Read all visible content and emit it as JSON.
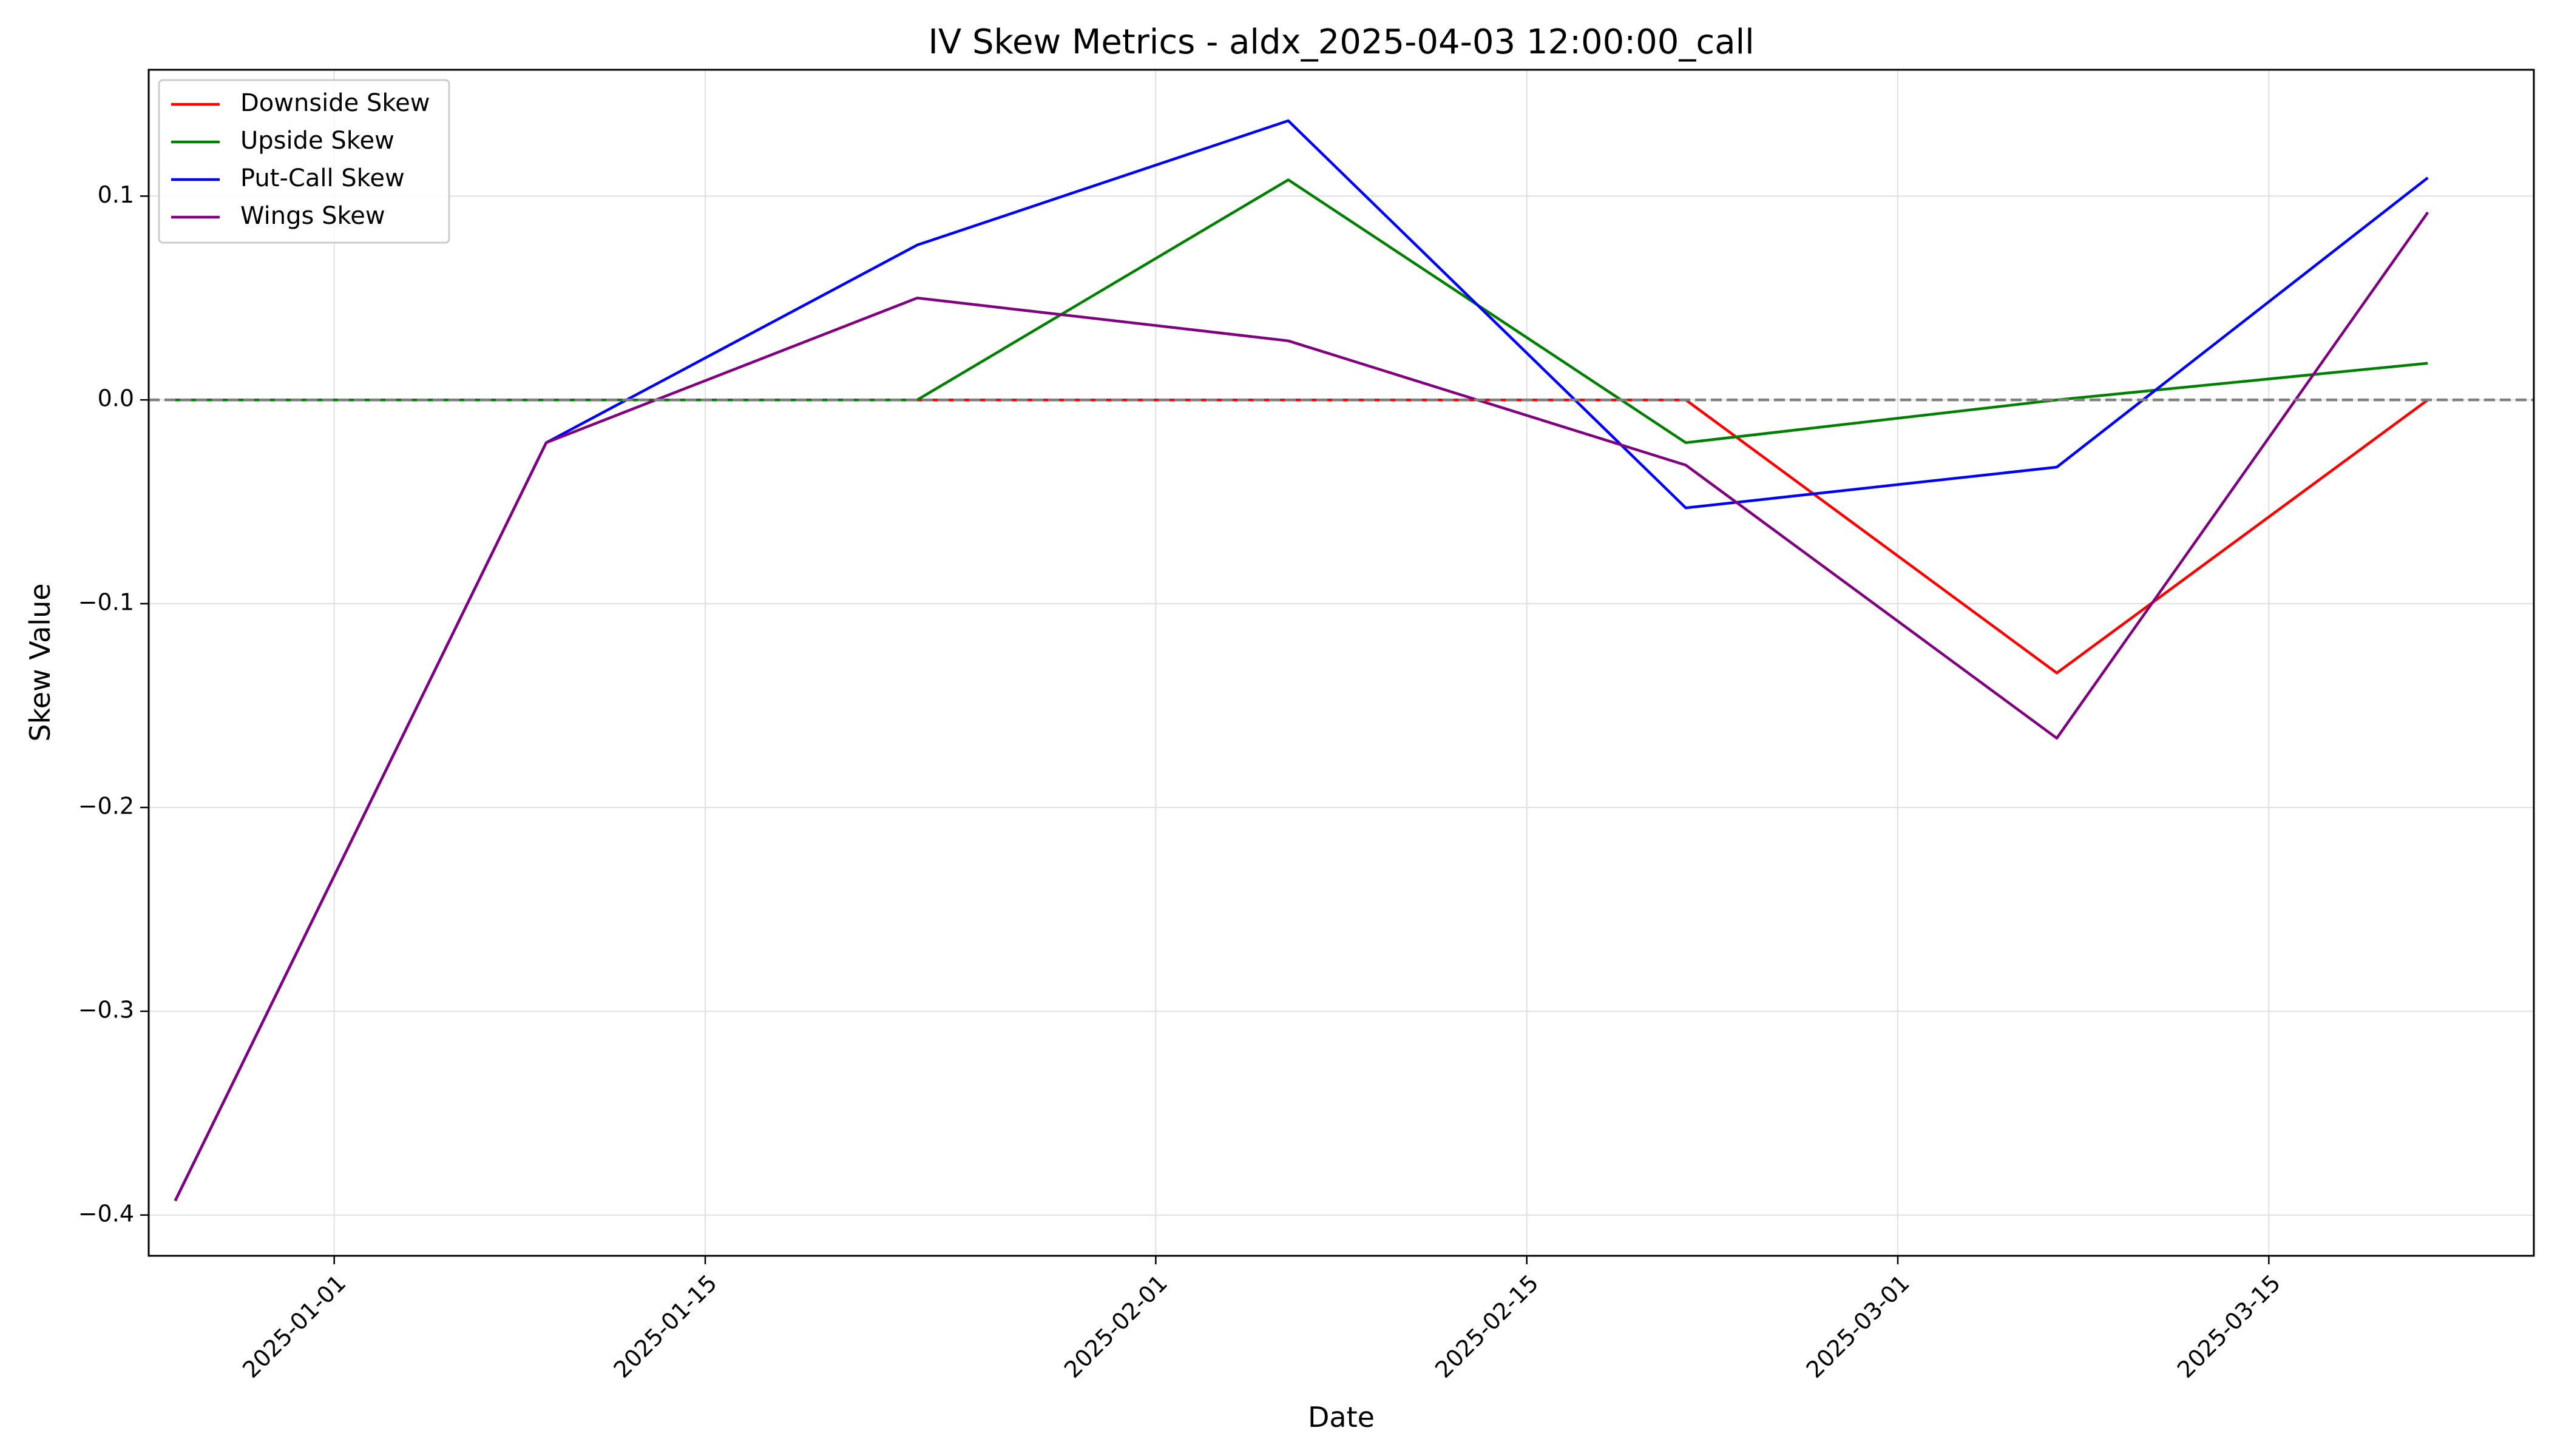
{
  "chart_data": {
    "type": "line",
    "title": "IV Skew Metrics - aldx_2025-04-03 12:00:00_call",
    "xlabel": "Date",
    "ylabel": "Skew Value",
    "x": [
      "2024-12-26",
      "2025-01-09",
      "2025-01-23",
      "2025-02-06",
      "2025-02-21",
      "2025-03-07",
      "2025-03-21"
    ],
    "xlim": [
      "2024-12-25",
      "2025-03-25"
    ],
    "ylim": [
      -0.42,
      0.162
    ],
    "x_ticks": [
      "2025-01-01",
      "2025-01-15",
      "2025-02-01",
      "2025-02-15",
      "2025-03-01",
      "2025-03-15"
    ],
    "y_ticks": [
      0.1,
      0.0,
      -0.1,
      -0.2,
      -0.3,
      -0.4
    ],
    "y_tick_labels": [
      "0.1",
      "0.0",
      "−0.1",
      "−0.2",
      "−0.3",
      "−0.4"
    ],
    "grid": true,
    "reference_line": {
      "y": 0.0,
      "style": "dashed",
      "color": "#7f7f7f"
    },
    "legend": "top-left",
    "series": [
      {
        "name": "Downside Skew",
        "color": "#ff0000",
        "values": [
          0.0,
          0.0,
          0.0,
          0.0,
          0.0,
          -0.134,
          0.0
        ]
      },
      {
        "name": "Upside Skew",
        "color": "#008000",
        "values": [
          0.0,
          0.0,
          0.0,
          0.108,
          -0.021,
          0.0,
          0.018
        ]
      },
      {
        "name": "Put-Call Skew",
        "color": "#0000ff",
        "values": [
          -0.393,
          -0.021,
          0.076,
          0.137,
          -0.053,
          -0.033,
          0.109
        ]
      },
      {
        "name": "Wings Skew",
        "color": "#800080",
        "values": [
          -0.393,
          -0.021,
          0.05,
          0.029,
          -0.032,
          -0.166,
          0.092
        ]
      }
    ]
  }
}
